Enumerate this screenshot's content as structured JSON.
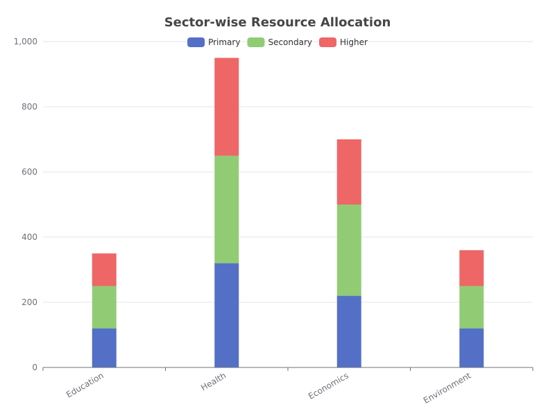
{
  "chart_data": {
    "type": "bar",
    "stacked": true,
    "title": "Sector-wise Resource Allocation",
    "categories": [
      "Education",
      "Health",
      "Economics",
      "Environment"
    ],
    "series": [
      {
        "name": "Primary",
        "values": [
          120,
          320,
          220,
          120
        ]
      },
      {
        "name": "Secondary",
        "values": [
          130,
          330,
          280,
          130
        ]
      },
      {
        "name": "Higher",
        "values": [
          100,
          300,
          200,
          110
        ]
      }
    ],
    "ylim": [
      0,
      1000
    ],
    "yticks": [
      0,
      200,
      400,
      600,
      800,
      1000
    ],
    "ytick_labels": [
      "0",
      "200",
      "400",
      "600",
      "800",
      "1,000"
    ],
    "xlabel": "",
    "ylabel": "",
    "grid": true,
    "legend_position": "top-center"
  },
  "colors": {
    "Primary": "#5470c6",
    "Secondary": "#91cc75",
    "Higher": "#ee6666",
    "grid": "#e0e6f1",
    "axis": "#6e7079"
  }
}
